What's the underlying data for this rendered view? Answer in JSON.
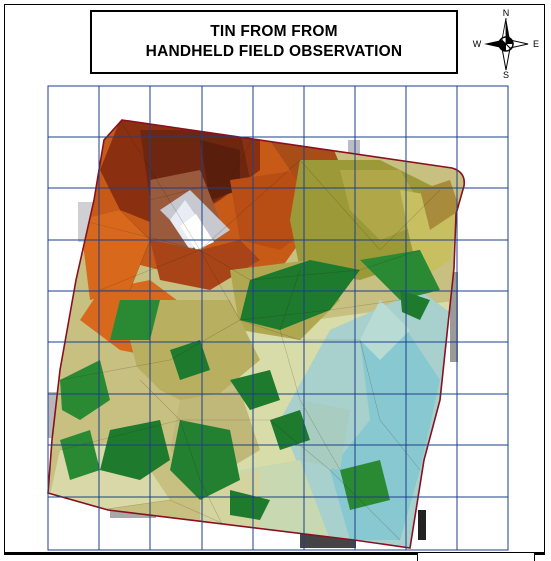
{
  "map": {
    "title_line1": "TIN FROM FROM",
    "title_line2": "HANDHELD FIELD OBSERVATION",
    "compass": {
      "north": "N",
      "south": "S",
      "east": "E",
      "west": "W"
    },
    "layers": [
      "grid-overlay",
      "tin-surface",
      "boundary-outline"
    ],
    "colors": {
      "grid_line": "#1c3f8c",
      "boundary": "#8a1020",
      "peak_high": "#e8ecf4",
      "brown_high": "#7a2c10",
      "orange": "#c85a18",
      "olive": "#9c9a38",
      "khaki": "#c8c080",
      "green": "#1e7a2c",
      "pale": "#d8dca8",
      "cyan_low": "#88c8d0"
    }
  }
}
